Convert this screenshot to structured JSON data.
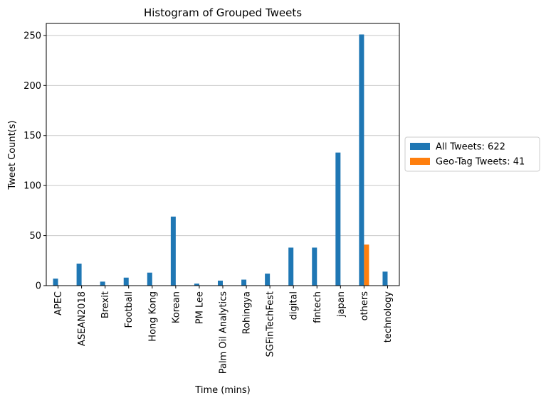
{
  "chart_data": {
    "type": "bar",
    "title": "Histogram of Grouped Tweets",
    "xlabel": "Time (mins)",
    "ylabel": "Tweet Count(s)",
    "ylim": [
      0,
      262
    ],
    "yticks": [
      0,
      50,
      100,
      150,
      200,
      250
    ],
    "grid": "y",
    "legend_position": "center-right outside plot",
    "categories": [
      "APEC",
      "ASEAN2018",
      "Brexit",
      "Football",
      "Hong Kong",
      "Korean",
      "PM Lee",
      "Palm Oil Analytics",
      "Rohingya",
      "SGFinTechFest",
      "digital",
      "fintech",
      "japan",
      "others",
      "technology"
    ],
    "series": [
      {
        "name": "All Tweets: 622",
        "color": "#1f77b4",
        "values": [
          7,
          22,
          4,
          8,
          13,
          69,
          2,
          5,
          6,
          12,
          38,
          38,
          133,
          251,
          14
        ]
      },
      {
        "name": "Geo-Tag Tweets: 41",
        "color": "#ff7f0e",
        "values": [
          0,
          0,
          0,
          0,
          0,
          0,
          0,
          0,
          0,
          0,
          0,
          0,
          0,
          41,
          0
        ]
      }
    ]
  }
}
